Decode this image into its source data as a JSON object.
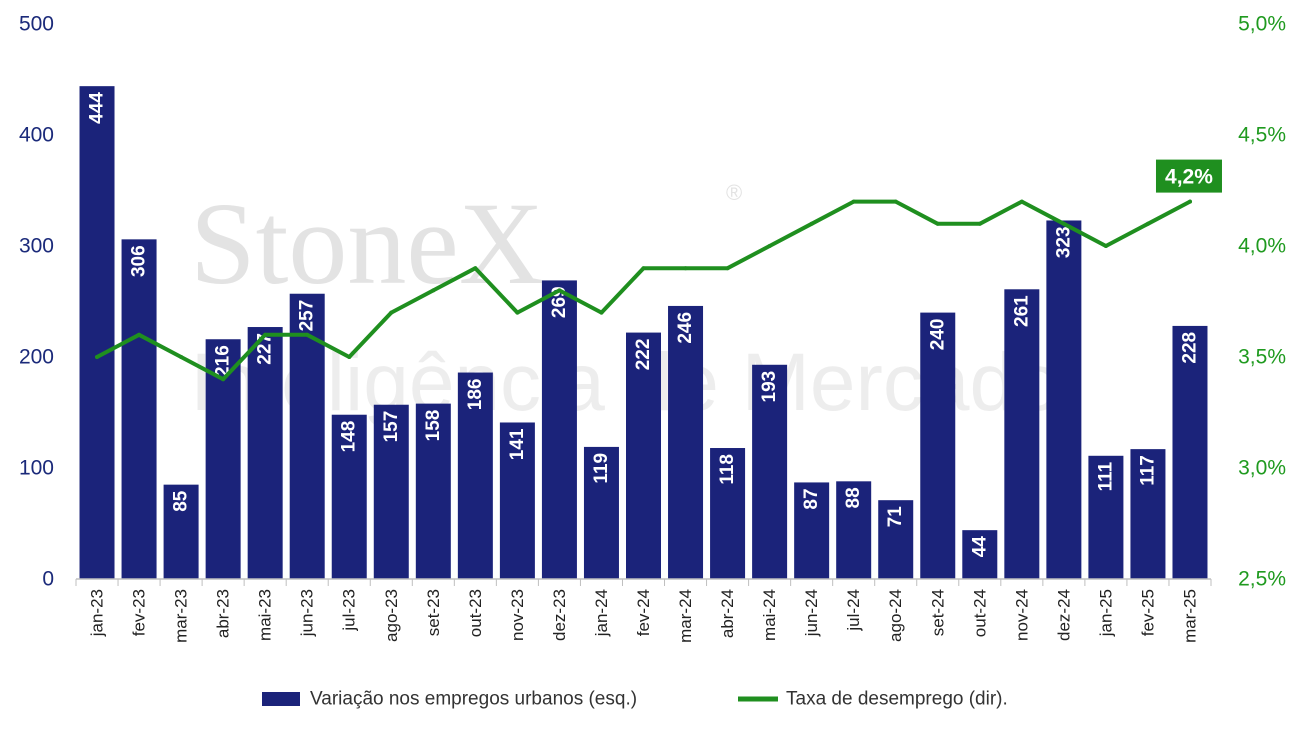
{
  "chart_data": {
    "type": "bar+line",
    "categories": [
      "jan-23",
      "fev-23",
      "mar-23",
      "abr-23",
      "mai-23",
      "jun-23",
      "jul-23",
      "ago-23",
      "set-23",
      "out-23",
      "nov-23",
      "dez-23",
      "jan-24",
      "fev-24",
      "mar-24",
      "abr-24",
      "mai-24",
      "jun-24",
      "jul-24",
      "ago-24",
      "set-24",
      "out-24",
      "nov-24",
      "dez-24",
      "jan-25",
      "fev-25",
      "mar-25"
    ],
    "series": [
      {
        "name": "Variação nos empregos urbanos (esq.)",
        "type": "bar",
        "axis": "left",
        "color": "#1b237a",
        "values": [
          444,
          306,
          85,
          216,
          227,
          257,
          148,
          157,
          158,
          186,
          141,
          269,
          119,
          222,
          246,
          118,
          193,
          87,
          88,
          71,
          240,
          44,
          261,
          323,
          111,
          117,
          228
        ],
        "labels": [
          "444",
          "306",
          "85",
          "216",
          "227",
          "257",
          "148",
          "157",
          "158",
          "186",
          "141",
          "269",
          "119",
          "222",
          "246",
          "118",
          "193",
          "87",
          "88",
          "71",
          "240",
          "44",
          "261",
          "323",
          "111",
          "117",
          "228"
        ]
      },
      {
        "name": "Taxa de desemprego (dir).",
        "type": "line",
        "axis": "right",
        "color": "#1f8f1f",
        "values": [
          3.5,
          3.6,
          3.5,
          3.4,
          3.6,
          3.6,
          3.5,
          3.7,
          3.8,
          3.9,
          3.7,
          3.8,
          3.7,
          3.9,
          3.9,
          3.9,
          4.0,
          4.1,
          4.2,
          4.2,
          4.1,
          4.1,
          4.2,
          4.1,
          4.0,
          4.1,
          4.2
        ]
      }
    ],
    "y_left": {
      "lim": [
        0,
        500
      ],
      "ticks": [
        "0",
        "100",
        "200",
        "300",
        "400",
        "500"
      ]
    },
    "y_right": {
      "lim": [
        2.5,
        5.0
      ],
      "ticks": [
        "2,5%",
        "3,0%",
        "3,5%",
        "4,0%",
        "4,5%",
        "5,0%"
      ]
    },
    "callout": "4,2%",
    "legend_position": "bottom",
    "grid": false
  },
  "watermark": {
    "brand": "StoneX",
    "registered": "®",
    "subtitle": "Inteligência de Mercado"
  },
  "colors": {
    "bar": "#1b237a",
    "line": "#1f8f1f",
    "left_axis_text": "#1b2a7a",
    "right_axis_text": "#1f9a1f"
  }
}
